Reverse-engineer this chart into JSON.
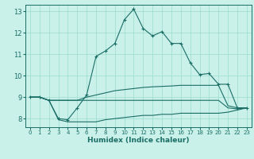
{
  "xlabel": "Humidex (Indice chaleur)",
  "bg_color": "#caf0ea",
  "line_color": "#1a6e65",
  "grid_color": "#99ddcc",
  "xlim": [
    -0.5,
    23.5
  ],
  "ylim": [
    7.6,
    13.3
  ],
  "xticks": [
    0,
    1,
    2,
    3,
    4,
    5,
    6,
    7,
    8,
    9,
    10,
    11,
    12,
    13,
    14,
    15,
    16,
    17,
    18,
    19,
    20,
    21,
    22,
    23
  ],
  "yticks": [
    8,
    9,
    10,
    11,
    12,
    13
  ],
  "line_main_y": [
    9.0,
    9.0,
    8.85,
    8.0,
    7.95,
    8.5,
    9.1,
    10.9,
    11.15,
    11.5,
    12.6,
    13.1,
    12.2,
    11.85,
    12.05,
    11.5,
    11.5,
    10.6,
    10.05,
    10.1,
    9.6,
    9.6,
    8.5,
    8.5
  ],
  "line_upper_flat_y": [
    9.0,
    9.0,
    8.85,
    8.85,
    8.85,
    8.85,
    9.0,
    9.1,
    9.2,
    9.3,
    9.35,
    9.4,
    9.45,
    9.48,
    9.5,
    9.52,
    9.55,
    9.55,
    9.55,
    9.55,
    9.55,
    8.6,
    8.5,
    8.5
  ],
  "line_lower_flat_y": [
    9.0,
    9.0,
    8.85,
    8.85,
    8.85,
    8.85,
    8.85,
    8.85,
    8.85,
    8.85,
    8.85,
    8.85,
    8.85,
    8.85,
    8.85,
    8.85,
    8.85,
    8.85,
    8.85,
    8.85,
    8.85,
    8.5,
    8.45,
    8.5
  ],
  "line_bottom_y": [
    9.0,
    9.0,
    8.85,
    7.95,
    7.85,
    7.85,
    7.85,
    7.85,
    7.95,
    8.0,
    8.05,
    8.1,
    8.15,
    8.15,
    8.2,
    8.2,
    8.25,
    8.25,
    8.25,
    8.25,
    8.25,
    8.3,
    8.4,
    8.5
  ]
}
